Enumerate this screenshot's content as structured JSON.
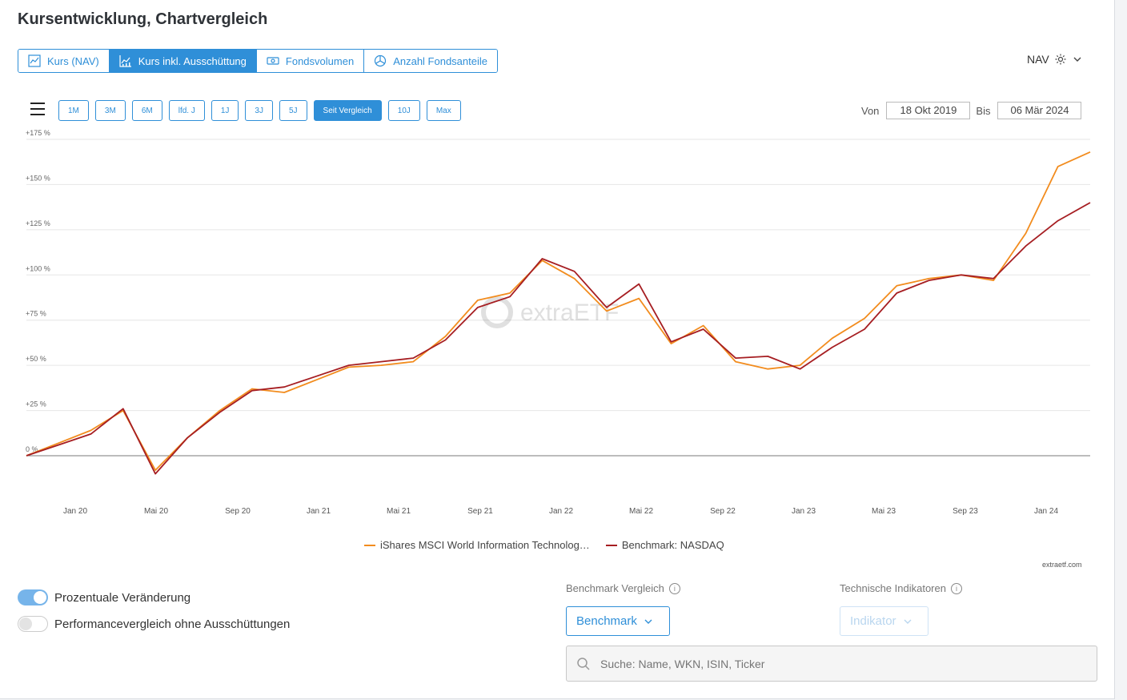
{
  "title": "Kursentwicklung, Chartvergleich",
  "tabs": [
    {
      "label": "Kurs (NAV)",
      "icon": "line-chart-icon"
    },
    {
      "label": "Kurs inkl. Ausschüttung",
      "icon": "bar-line-chart-icon",
      "active": true
    },
    {
      "label": "Fondsvolumen",
      "icon": "money-icon"
    },
    {
      "label": "Anzahl Fondsanteile",
      "icon": "pie-chart-icon"
    }
  ],
  "nav_select": {
    "label": "NAV"
  },
  "ranges": [
    "1M",
    "3M",
    "6M",
    "lfd. J",
    "1J",
    "3J",
    "5J",
    "Seit Vergleich",
    "10J",
    "Max"
  ],
  "active_range": "Seit Vergleich",
  "date": {
    "from_label": "Von",
    "from": "18 Okt 2019",
    "to_label": "Bis",
    "to": "06 Mär 2024"
  },
  "toggles": {
    "percent": {
      "label": "Prozentuale Veränderung",
      "on": true
    },
    "no_dist": {
      "label": "Performancevergleich ohne Ausschüttungen",
      "on": false
    }
  },
  "benchmark": {
    "label": "Benchmark Vergleich",
    "button": "Benchmark"
  },
  "indicators": {
    "label": "Technische Indikatoren",
    "button": "Indikator"
  },
  "search": {
    "placeholder": "Suche: Name, WKN, ISIN, Ticker"
  },
  "credit": "extraetf.com",
  "watermark": "extraETF",
  "colors": {
    "accent": "#2f8fd8",
    "fund": "#f28c1e",
    "benchmark": "#a61e22",
    "toggle_on": "#76b4ea",
    "toggle_off": "#e3e3e3"
  },
  "chart_data": {
    "type": "line",
    "x_tick_labels": [
      "Jan 20",
      "Mai 20",
      "Sep 20",
      "Jan 21",
      "Mai 21",
      "Sep 21",
      "Jan 22",
      "Mai 22",
      "Sep 22",
      "Jan 23",
      "Mai 23",
      "Sep 23",
      "Jan 24"
    ],
    "y_tick_labels": [
      "0 %",
      "+25 %",
      "+50 %",
      "+75 %",
      "+100 %",
      "+125 %",
      "+150 %",
      "+175 %"
    ],
    "ylim": [
      0,
      175
    ],
    "x": [
      "Okt 19",
      "Dez 19",
      "Jan 20",
      "Feb 20",
      "Mär 20",
      "Apr 20",
      "Jun 20",
      "Aug 20",
      "Sep 20",
      "Nov 20",
      "Jan 21",
      "Mär 21",
      "Mai 21",
      "Jul 21",
      "Sep 21",
      "Okt 21",
      "Dez 21",
      "Jan 22",
      "Mär 22",
      "Apr 22",
      "Jun 22",
      "Aug 22",
      "Okt 22",
      "Dez 22",
      "Jan 23",
      "Mär 23",
      "Mai 23",
      "Jul 23",
      "Sep 23",
      "Okt 23",
      "Dez 23",
      "Jan 24",
      "Feb 24",
      "Mär 24"
    ],
    "series": [
      {
        "name": "iShares MSCI World Information Technolog…",
        "color": "#f28c1e",
        "values": [
          0,
          7,
          14,
          25,
          -8,
          10,
          25,
          37,
          35,
          42,
          49,
          50,
          52,
          66,
          86,
          90,
          108,
          98,
          80,
          87,
          62,
          72,
          52,
          48,
          50,
          65,
          76,
          94,
          98,
          100,
          97,
          123,
          160,
          168
        ]
      },
      {
        "name": "Benchmark: NASDAQ",
        "color": "#a61e22",
        "values": [
          0,
          6,
          12,
          26,
          -10,
          10,
          24,
          36,
          38,
          44,
          50,
          52,
          54,
          64,
          82,
          88,
          109,
          102,
          82,
          95,
          63,
          70,
          54,
          55,
          48,
          60,
          70,
          90,
          97,
          100,
          98,
          116,
          130,
          140
        ]
      }
    ]
  }
}
